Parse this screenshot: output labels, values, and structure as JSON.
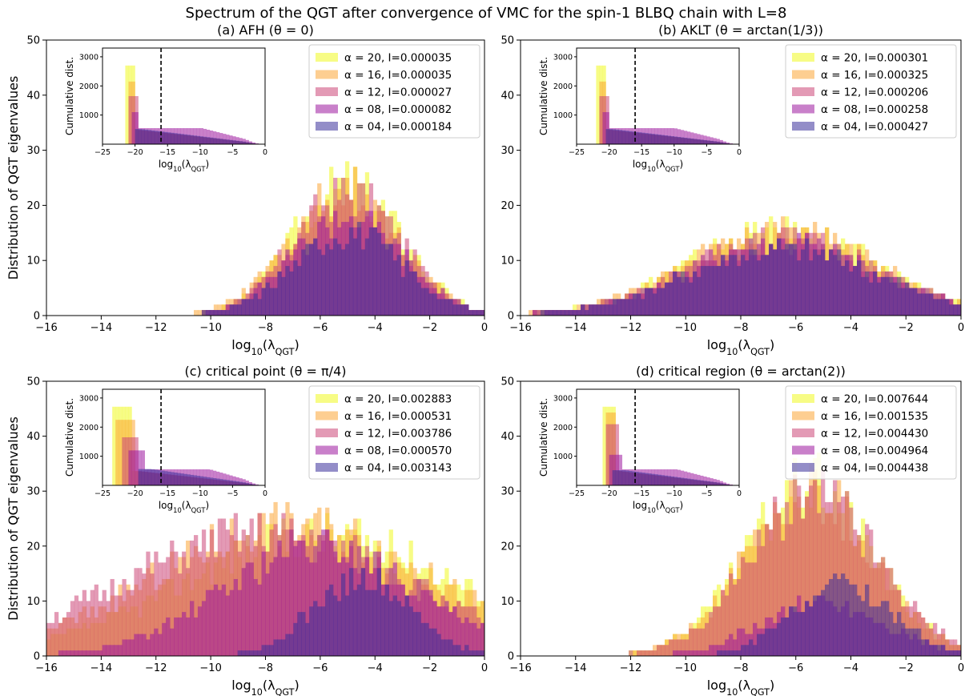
{
  "title": "Spectrum of the QGT after convergence of VMC for the spin-1 BLBQ chain with L=8",
  "chart_data": [
    {
      "type": "histogram",
      "subtitle": "(a) AFH (θ = 0)",
      "xlabel": "log10(λQGT)",
      "ylabel": "Distribution of QGT eigenvalues",
      "xlim": [
        -16,
        0
      ],
      "ylim": [
        0,
        50
      ],
      "xticks": [
        "−16",
        "−14",
        "−12",
        "−10",
        "−8",
        "−6",
        "−4",
        "−2",
        "0"
      ],
      "yticks": [
        "0",
        "10",
        "20",
        "30",
        "40",
        "50"
      ],
      "legend_position": "upper right",
      "series": [
        {
          "name": "α = 20",
          "info": "I=0.000035",
          "color": "#f0f921",
          "mu": -5.0,
          "sigma": 1.95,
          "peak": 24
        },
        {
          "name": "α = 16",
          "info": "I=0.000035",
          "color": "#fca636",
          "mu": -5.1,
          "sigma": 2.0,
          "peak": 23
        },
        {
          "name": "α = 12",
          "info": "I=0.000027",
          "color": "#cc4778",
          "mu": -5.0,
          "sigma": 1.95,
          "peak": 22
        },
        {
          "name": "α = 08",
          "info": "I=0.000082",
          "color": "#9c179e",
          "mu": -5.0,
          "sigma": 2.0,
          "peak": 18
        },
        {
          "name": "α = 04",
          "info": "I=0.000184",
          "color": "#3a2f9a",
          "mu": -5.0,
          "sigma": 2.0,
          "peak": 15
        }
      ],
      "inset": {
        "ylabel": "Cumulative dist.",
        "xlabel": "log10(λQGT)",
        "xlim": [
          -25,
          0
        ],
        "ylim": [
          0,
          3300
        ],
        "xticks": [
          "−25",
          "−20",
          "−15",
          "−10",
          "−5",
          "0"
        ],
        "yticks": [
          "1000",
          "2000",
          "3000"
        ],
        "threshold": -16,
        "steps": [
          {
            "start": -21.5,
            "end": -20.0,
            "total": 2700
          },
          {
            "start": -21.2,
            "end": -20.0,
            "total": 2150
          },
          {
            "start": -20.8,
            "end": -19.6,
            "total": 1650
          },
          {
            "start": -20.5,
            "end": -19.4,
            "total": 1100
          },
          {
            "start": -20.0,
            "end": -19.0,
            "total": 520
          }
        ]
      }
    },
    {
      "type": "histogram",
      "subtitle": "(b) AKLT (θ = arctan(1/3))",
      "xlabel": "log10(λQGT)",
      "ylabel": "",
      "xlim": [
        -16,
        0
      ],
      "ylim": [
        0,
        50
      ],
      "xticks": [
        "−16",
        "−14",
        "−12",
        "−10",
        "−8",
        "−6",
        "−4",
        "−2",
        "0"
      ],
      "yticks": [
        "0",
        "10",
        "20",
        "30",
        "40",
        "50"
      ],
      "legend_position": "upper right",
      "series": [
        {
          "name": "α = 20",
          "info": "I=0.000301",
          "color": "#f0f921",
          "mu": -6.5,
          "sigma": 3.5,
          "peak": 15
        },
        {
          "name": "α = 16",
          "info": "I=0.000325",
          "color": "#fca636",
          "mu": -6.5,
          "sigma": 3.5,
          "peak": 15
        },
        {
          "name": "α = 12",
          "info": "I=0.000206",
          "color": "#cc4778",
          "mu": -6.5,
          "sigma": 3.4,
          "peak": 14
        },
        {
          "name": "α = 08",
          "info": "I=0.000258",
          "color": "#9c179e",
          "mu": -6.5,
          "sigma": 3.5,
          "peak": 13
        },
        {
          "name": "α = 04",
          "info": "I=0.000427",
          "color": "#3a2f9a",
          "mu": -6.5,
          "sigma": 3.5,
          "peak": 12
        }
      ],
      "inset": {
        "ylabel": "Cumulative dist.",
        "xlabel": "log10(λQGT)",
        "xlim": [
          -25,
          0
        ],
        "ylim": [
          0,
          3300
        ],
        "xticks": [
          "−25",
          "−20",
          "−15",
          "−10",
          "−5",
          "0"
        ],
        "yticks": [
          "1000",
          "2000",
          "3000"
        ],
        "threshold": -16,
        "steps": [
          {
            "start": -22.0,
            "end": -20.5,
            "total": 2700
          },
          {
            "start": -21.7,
            "end": -20.3,
            "total": 2150
          },
          {
            "start": -21.3,
            "end": -20.0,
            "total": 1650
          },
          {
            "start": -21.0,
            "end": -19.8,
            "total": 1100
          },
          {
            "start": -20.5,
            "end": -19.5,
            "total": 520
          }
        ]
      }
    },
    {
      "type": "histogram",
      "subtitle": "(c) critical point (θ = π/4)",
      "xlabel": "log10(λQGT)",
      "ylabel": "Distribution of QGT eigenvalues",
      "xlim": [
        -16,
        0
      ],
      "ylim": [
        0,
        50
      ],
      "xticks": [
        "−16",
        "−14",
        "−12",
        "−10",
        "−8",
        "−6",
        "−4",
        "−2",
        "0"
      ],
      "yticks": [
        "0",
        "10",
        "20",
        "30",
        "40",
        "50"
      ],
      "legend_position": "upper right",
      "series": [
        {
          "name": "α = 20",
          "info": "I=0.002883",
          "color": "#f0f921",
          "mu": -6.0,
          "sigma": 5.0,
          "peak": 22
        },
        {
          "name": "α = 16",
          "info": "I=0.000531",
          "color": "#fca636",
          "mu": -7.0,
          "sigma": 5.0,
          "peak": 24
        },
        {
          "name": "α = 12",
          "info": "I=0.003786",
          "color": "#cc4778",
          "mu": -8.0,
          "sigma": 5.2,
          "peak": 22
        },
        {
          "name": "α = 08",
          "info": "I=0.000570",
          "color": "#9c179e",
          "mu": -6.0,
          "sigma": 3.5,
          "peak": 20
        },
        {
          "name": "α = 04",
          "info": "I=0.003143",
          "color": "#3a2f9a",
          "mu": -4.5,
          "sigma": 1.8,
          "peak": 14
        }
      ],
      "inset": {
        "ylabel": "Cumulative dist.",
        "xlabel": "log10(λQGT)",
        "xlim": [
          -25,
          0
        ],
        "ylim": [
          0,
          3300
        ],
        "xticks": [
          "−25",
          "−20",
          "−15",
          "−10",
          "−5",
          "0"
        ],
        "yticks": [
          "1000",
          "2000",
          "3000"
        ],
        "threshold": -16,
        "steps": [
          {
            "start": -23.5,
            "end": -20.5,
            "total": 2700
          },
          {
            "start": -22.8,
            "end": -20.0,
            "total": 2250
          },
          {
            "start": -22.0,
            "end": -19.5,
            "total": 1650
          },
          {
            "start": -21.0,
            "end": -18.5,
            "total": 1200
          },
          {
            "start": -19.5,
            "end": -17.5,
            "total": 560
          }
        ]
      }
    },
    {
      "type": "histogram",
      "subtitle": "(d) critical region (θ = arctan(2))",
      "xlabel": "log10(λQGT)",
      "ylabel": "",
      "xlim": [
        -16,
        0
      ],
      "ylim": [
        0,
        50
      ],
      "xticks": [
        "−16",
        "−14",
        "−12",
        "−10",
        "−8",
        "−6",
        "−4",
        "−2",
        "0"
      ],
      "yticks": [
        "0",
        "10",
        "20",
        "30",
        "40",
        "50"
      ],
      "legend_position": "upper right",
      "series": [
        {
          "name": "α = 20",
          "info": "I=0.007644",
          "color": "#f0f921",
          "mu": -5.5,
          "sigma": 2.3,
          "peak": 31
        },
        {
          "name": "α = 16",
          "info": "I=0.001535",
          "color": "#fca636",
          "mu": -5.5,
          "sigma": 2.3,
          "peak": 30
        },
        {
          "name": "α = 12",
          "info": "I=0.004430",
          "color": "#cc4778",
          "mu": -5.3,
          "sigma": 2.3,
          "peak": 30
        },
        {
          "name": "α = 08",
          "info": "I=0.004964",
          "color": "#9c179e",
          "mu": -5.0,
          "sigma": 2.2,
          "peak": 10
        },
        {
          "name": "α = 04",
          "info": "I=0.004438",
          "color": "#3a2f9a",
          "mu": -4.3,
          "sigma": 1.8,
          "peak": 13
        }
      ],
      "inset": {
        "ylabel": "Cumulative dist.",
        "xlabel": "log10(λQGT)",
        "xlim": [
          -25,
          0
        ],
        "ylim": [
          0,
          3300
        ],
        "xticks": [
          "−25",
          "−20",
          "−15",
          "−10",
          "−5",
          "0"
        ],
        "yticks": [
          "1000",
          "2000",
          "3000"
        ],
        "threshold": -16,
        "steps": [
          {
            "start": -21.0,
            "end": -19.0,
            "total": 2700
          },
          {
            "start": -20.7,
            "end": -18.8,
            "total": 2500
          },
          {
            "start": -20.4,
            "end": -18.5,
            "total": 2100
          },
          {
            "start": -20.0,
            "end": -18.2,
            "total": 1050
          },
          {
            "start": -19.5,
            "end": -17.5,
            "total": 520
          }
        ]
      }
    }
  ]
}
